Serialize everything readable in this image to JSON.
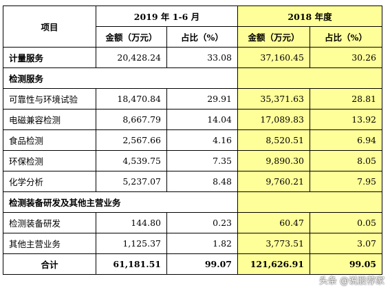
{
  "header": {
    "item": "项目",
    "period1": "2019 年 1-6 月",
    "period2": "2018 年度",
    "amount": "金额（万元）",
    "ratio": "占比（%）"
  },
  "colors": {
    "highlight": "#ffff99"
  },
  "rows": [
    {
      "label": "计量服务",
      "a1": "20,428.24",
      "r1": "33.08",
      "a2": "37,160.45",
      "r2": "30.26",
      "section": true
    },
    {
      "label": "检测服务",
      "a1": "",
      "r1": "",
      "a2": "",
      "r2": "",
      "section": true
    },
    {
      "label": "可靠性与环境试验",
      "a1": "18,470.84",
      "r1": "29.91",
      "a2": "35,371.63",
      "r2": "28.81",
      "section": false
    },
    {
      "label": "电磁兼容检测",
      "a1": "8,667.79",
      "r1": "14.04",
      "a2": "17,089.83",
      "r2": "13.92",
      "section": false
    },
    {
      "label": "食品检测",
      "a1": "2,567.66",
      "r1": "4.16",
      "a2": "8,520.51",
      "r2": "6.94",
      "section": false
    },
    {
      "label": "环保检测",
      "a1": "4,539.75",
      "r1": "7.35",
      "a2": "9,890.30",
      "r2": "8.05",
      "section": false
    },
    {
      "label": "化学分析",
      "a1": "5,237.07",
      "r1": "8.48",
      "a2": "9,760.21",
      "r2": "7.95",
      "section": false
    },
    {
      "label": "检测装备研发及其他主营业务",
      "a1": "",
      "r1": "",
      "a2": "",
      "r2": "",
      "section": true,
      "span": true
    },
    {
      "label": "检测装备研发",
      "a1": "144.80",
      "r1": "0.23",
      "a2": "60.47",
      "r2": "0.05",
      "section": false
    },
    {
      "label": "其他主营业务",
      "a1": "1,125.37",
      "r1": "1.82",
      "a2": "3,773.51",
      "r2": "3.07",
      "section": false
    }
  ],
  "total": {
    "label": "合计",
    "a1": "61,181.51",
    "r1": "99.07",
    "a2": "121,626.91",
    "r2": "99.05"
  },
  "watermark": "头条 @说股荐家"
}
